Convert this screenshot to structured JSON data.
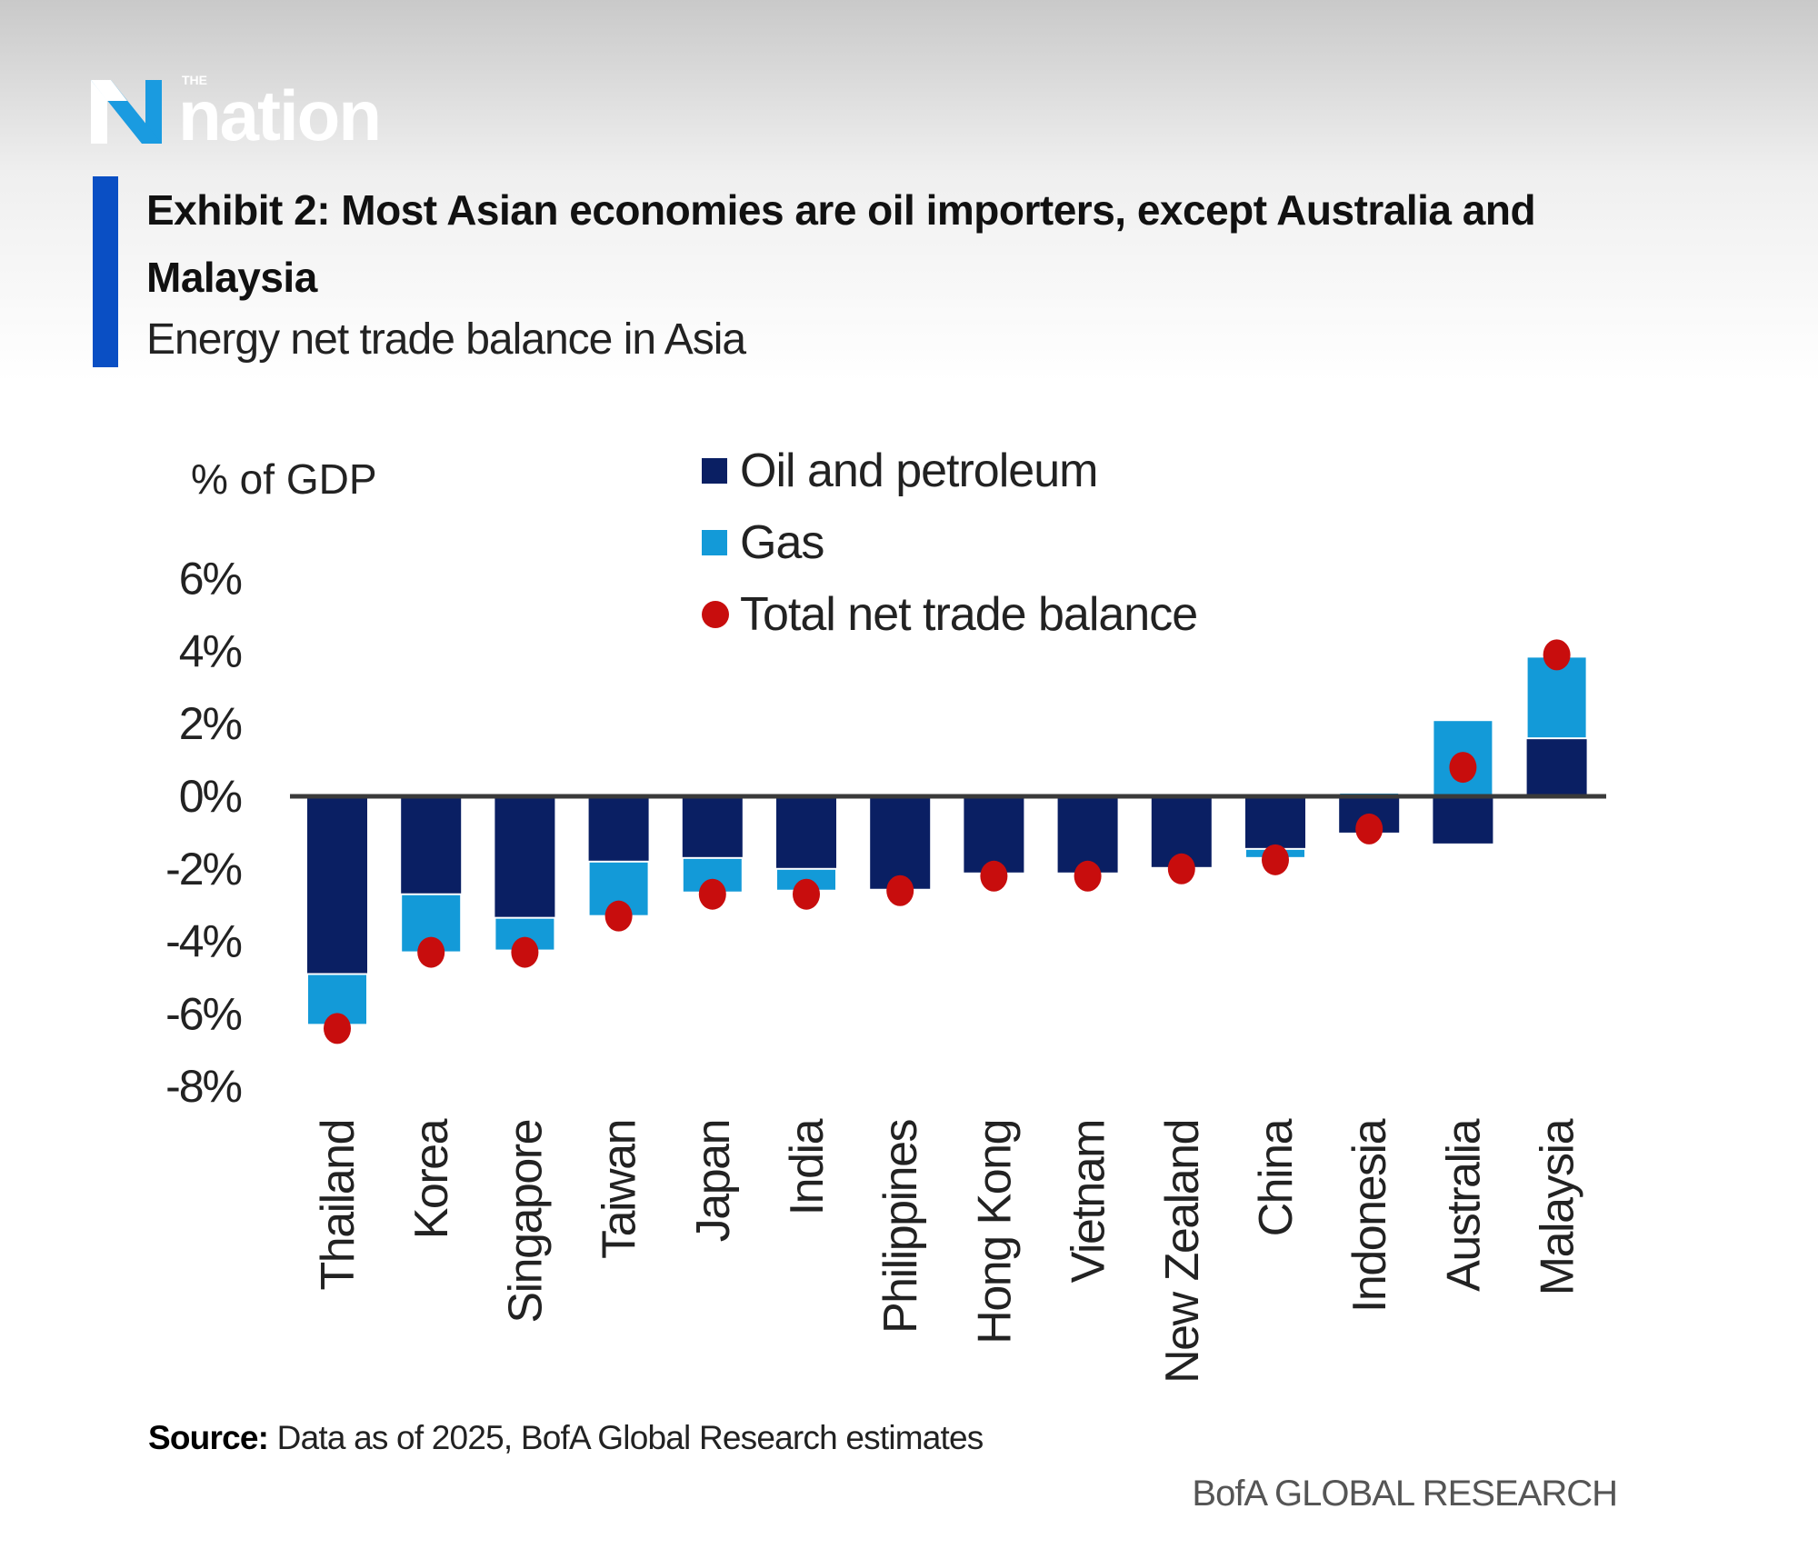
{
  "header": {
    "logo_small": "THE",
    "logo_word": "nation",
    "title": "Exhibit 2: Most Asian economies are oil importers, except Australia and Malaysia",
    "subtitle": "Energy net trade balance in Asia"
  },
  "footer": {
    "source_label": "Source:",
    "source_text": " Data as of 2025, BofA Global Research estimates",
    "brand": "BofA GLOBAL RESEARCH"
  },
  "colors": {
    "oil": "#0a1f63",
    "gas": "#139ad8",
    "total": "#c80d0d",
    "axis": "#3a3a3a",
    "accent": "#0a4fc4"
  },
  "chart_data": {
    "type": "bar",
    "stacked": true,
    "title": "Exhibit 2: Most Asian economies are oil importers, except Australia and Malaysia",
    "subtitle": "Energy net trade balance in Asia",
    "ylabel": "% of GDP",
    "xlabel": "",
    "ylim": [
      -8,
      6
    ],
    "yticks": [
      6,
      4,
      2,
      0,
      -2,
      -4,
      -6,
      -8
    ],
    "ytick_labels": [
      "6%",
      "4%",
      "2%",
      "0%",
      "-2%",
      "-4%",
      "-6%",
      "-8%"
    ],
    "grid": false,
    "legend_placement": "top-center",
    "categories": [
      "Thailand",
      "Korea",
      "Singapore",
      "Taiwan",
      "Japan",
      "India",
      "Philippines",
      "Hong Kong",
      "Vietnam",
      "New Zealand",
      "China",
      "Indonesia",
      "Australia",
      "Malaysia"
    ],
    "series": [
      {
        "name": "Oil and petroleum",
        "kind": "bar",
        "values": [
          -4.9,
          -2.7,
          -3.35,
          -1.8,
          -1.7,
          -2.0,
          -2.55,
          -2.1,
          -2.1,
          -1.95,
          -1.45,
          -1.0,
          -1.3,
          1.6
        ]
      },
      {
        "name": "Gas",
        "kind": "bar",
        "values": [
          -1.4,
          -1.6,
          -0.9,
          -1.5,
          -0.95,
          -0.6,
          0,
          0,
          0,
          0,
          -0.25,
          0.1,
          2.1,
          2.25
        ]
      },
      {
        "name": "Total net trade balance",
        "kind": "scatter",
        "values": [
          -6.4,
          -4.3,
          -4.3,
          -3.3,
          -2.7,
          -2.7,
          -2.6,
          -2.2,
          -2.2,
          -2.0,
          -1.75,
          -0.9,
          0.8,
          3.9
        ]
      }
    ]
  }
}
